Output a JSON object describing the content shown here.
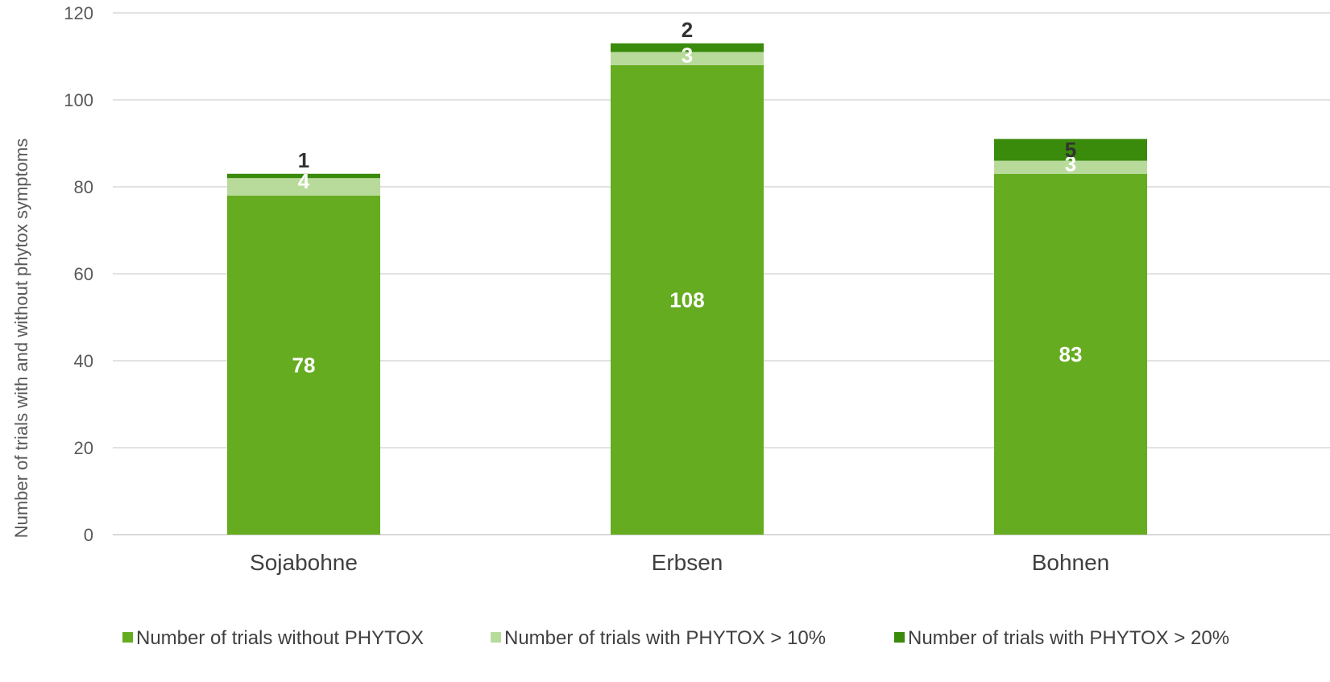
{
  "chart_data": {
    "type": "bar",
    "stacked": true,
    "categories": [
      "Sojabohne",
      "Erbsen",
      "Bohnen"
    ],
    "series": [
      {
        "name": "Number of trials without PHYTOX",
        "values": [
          78,
          108,
          83
        ],
        "color": "#66AC21",
        "label_color": "#ffffff"
      },
      {
        "name": "Number of trials with PHYTOX > 10%",
        "values": [
          4,
          3,
          3
        ],
        "color": "#B8DB9C",
        "label_color": "#ffffff"
      },
      {
        "name": "Number of trials with PHYTOX > 20%",
        "values": [
          1,
          2,
          5
        ],
        "color": "#3A8A0C",
        "label_color": "#333333"
      }
    ],
    "title": "",
    "xlabel": "",
    "ylabel": "Number of trials with and without phytox symptoms",
    "ylim": [
      0,
      120
    ],
    "yticks": [
      "0",
      "20",
      "40",
      "60",
      "80",
      "100",
      "120"
    ],
    "grid": true,
    "legend_position": "bottom"
  }
}
